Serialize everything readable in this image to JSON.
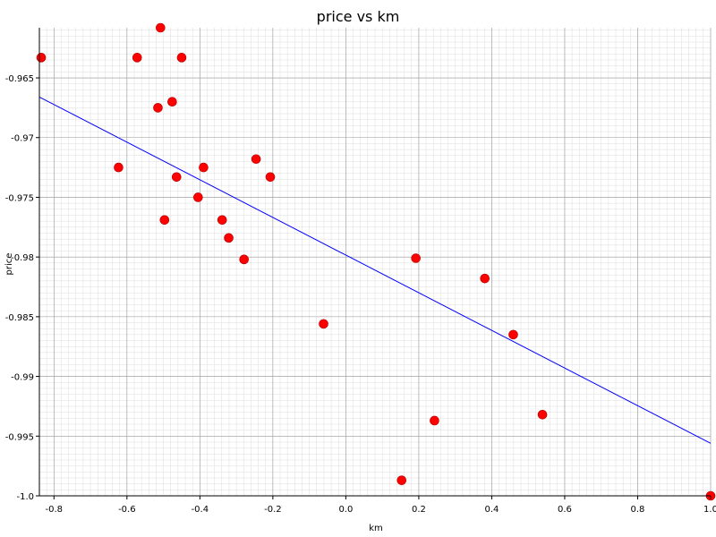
{
  "chart_data": {
    "type": "scatter",
    "title": "price vs km",
    "xlabel": "km",
    "ylabel": "price",
    "xlim": [
      -0.84,
      1.0
    ],
    "ylim": [
      -1.0,
      -0.9608
    ],
    "x_ticks": [
      -0.8,
      -0.6,
      -0.4,
      -0.2,
      0.0,
      0.2,
      0.4,
      0.6,
      0.8,
      1.0
    ],
    "x_tick_labels": [
      "-0.8",
      "-0.6",
      "-0.4",
      "-0.2",
      "0.0",
      "0.2",
      "0.4",
      "0.6",
      "0.8",
      "1.0"
    ],
    "y_ticks": [
      -1.0,
      -0.995,
      -0.99,
      -0.985,
      -0.98,
      -0.975,
      -0.97,
      -0.965
    ],
    "y_tick_labels": [
      "-1.0",
      "-0.995",
      "-0.99",
      "-0.985",
      "-0.98",
      "-0.975",
      "-0.97",
      "-0.965"
    ],
    "grid": true,
    "series": [
      {
        "color": "#ff0000",
        "points": [
          {
            "x": -0.835,
            "y": -0.9633
          },
          {
            "x": -0.508,
            "y": -0.9608
          },
          {
            "x": -0.572,
            "y": -0.9633
          },
          {
            "x": -0.45,
            "y": -0.9633
          },
          {
            "x": -0.476,
            "y": -0.967
          },
          {
            "x": -0.515,
            "y": -0.9675
          },
          {
            "x": -0.623,
            "y": -0.9725
          },
          {
            "x": -0.39,
            "y": -0.9725
          },
          {
            "x": -0.246,
            "y": -0.9718
          },
          {
            "x": -0.207,
            "y": -0.9733
          },
          {
            "x": -0.464,
            "y": -0.9733
          },
          {
            "x": -0.405,
            "y": -0.975
          },
          {
            "x": -0.497,
            "y": -0.9769
          },
          {
            "x": -0.339,
            "y": -0.9769
          },
          {
            "x": -0.321,
            "y": -0.9784
          },
          {
            "x": -0.279,
            "y": -0.9802
          },
          {
            "x": 0.192,
            "y": -0.9801
          },
          {
            "x": 0.381,
            "y": -0.9818
          },
          {
            "x": -0.061,
            "y": -0.9856
          },
          {
            "x": 0.459,
            "y": -0.9865
          },
          {
            "x": 0.539,
            "y": -0.9932
          },
          {
            "x": 0.243,
            "y": -0.9937
          },
          {
            "x": 0.153,
            "y": -0.9987
          },
          {
            "x": 1.0,
            "y": -1.0
          }
        ]
      }
    ],
    "fit_line": {
      "color": "#0000ff",
      "x": [
        -0.84,
        1.0
      ],
      "y": [
        -0.9666,
        -0.9956
      ]
    }
  }
}
